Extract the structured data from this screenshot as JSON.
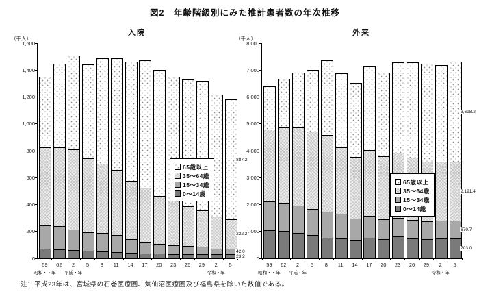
{
  "figure": {
    "title": "図2　年齢階級別にみた推計患者数の年次推移",
    "note": "注：平成23年は、宮城県の石巻医療圏、気仙沼医療圏及び福島県を除いた数値である。"
  },
  "legend": {
    "items": [
      {
        "label": "65歳以上",
        "pattern": "dots"
      },
      {
        "label": "35～64歳",
        "pattern": "hatch"
      },
      {
        "label": "15～34歳",
        "pattern": "mid"
      },
      {
        "label": "0～14歳",
        "pattern": "dark"
      }
    ]
  },
  "chart_data": [
    {
      "type": "bar",
      "stacked": true,
      "title": "入院",
      "unit_label": "（千人）",
      "ylim": [
        0,
        1600
      ],
      "yticks": [
        {
          "v": 0,
          "label": "0"
        },
        {
          "v": 200,
          "label": "200"
        },
        {
          "v": 400,
          "label": "400"
        },
        {
          "v": 600,
          "label": "600"
        },
        {
          "v": 800,
          "label": "800"
        },
        {
          "v": 1000,
          "label": "1,000"
        },
        {
          "v": 1200,
          "label": "1,200"
        },
        {
          "v": 1400,
          "label": "1,400"
        },
        {
          "v": 1600,
          "label": "1,600"
        }
      ],
      "categories": [
        "59",
        "62",
        "2",
        "5",
        "8",
        "11",
        "14",
        "17",
        "20",
        "23",
        "26",
        "29",
        "2",
        "5"
      ],
      "era_labels": [
        {
          "index": 0,
          "label": "昭和・・年"
        },
        {
          "index": 2,
          "label": "平成・年"
        },
        {
          "index": 12,
          "label": "令和・年"
        }
      ],
      "series": [
        {
          "name": "0～14歳",
          "pattern": "dark",
          "last_value_label": "23.2",
          "values": [
            67,
            60,
            55,
            50,
            48,
            43,
            37,
            33,
            30,
            28,
            27,
            26,
            24,
            23.2
          ]
        },
        {
          "name": "15～34歳",
          "pattern": "mid",
          "last_value_label": "42.0",
          "values": [
            175,
            172,
            153,
            140,
            137,
            125,
            103,
            85,
            73,
            65,
            58,
            54,
            42,
            42.0
          ]
        },
        {
          "name": "35～64歳",
          "pattern": "hatch",
          "last_value_label": "222.2",
          "values": [
            578,
            588,
            597,
            550,
            515,
            482,
            430,
            402,
            355,
            332,
            297,
            270,
            241,
            222.2
          ]
        },
        {
          "name": "65歳以上",
          "pattern": "dots",
          "last_value_label": "887.2",
          "values": [
            520,
            615,
            695,
            690,
            780,
            830,
            880,
            940,
            932,
            915,
            938,
            960,
            903,
            887.2
          ]
        }
      ]
    },
    {
      "type": "bar",
      "stacked": true,
      "title": "外来",
      "unit_label": "（千人）",
      "ylim": [
        0,
        8000
      ],
      "yticks": [
        {
          "v": 0,
          "label": "0"
        },
        {
          "v": 1000,
          "label": "1,000"
        },
        {
          "v": 2000,
          "label": "2,000"
        },
        {
          "v": 3000,
          "label": "3,000"
        },
        {
          "v": 4000,
          "label": "4,000"
        },
        {
          "v": 5000,
          "label": "5,000"
        },
        {
          "v": 6000,
          "label": "6,000"
        },
        {
          "v": 7000,
          "label": "7,000"
        },
        {
          "v": 8000,
          "label": "8,000"
        }
      ],
      "categories": [
        "59",
        "62",
        "2",
        "5",
        "8",
        "11",
        "14",
        "17",
        "20",
        "23",
        "26",
        "29",
        "2",
        "5"
      ],
      "era_labels": [
        {
          "index": 0,
          "label": "昭和・・年"
        },
        {
          "index": 2,
          "label": "平成・年"
        },
        {
          "index": 12,
          "label": "令和・年"
        }
      ],
      "series": [
        {
          "name": "0～14歳",
          "pattern": "dark",
          "last_value_label": "703.0",
          "values": [
            1030,
            1000,
            920,
            830,
            750,
            720,
            640,
            750,
            690,
            780,
            720,
            700,
            720,
            703.0
          ]
        },
        {
          "name": "15～34歳",
          "pattern": "mid",
          "last_value_label": "670.7",
          "values": [
            1070,
            1040,
            1020,
            990,
            970,
            910,
            810,
            810,
            740,
            710,
            690,
            660,
            650,
            670.7
          ]
        },
        {
          "name": "35～64歳",
          "pattern": "hatch",
          "last_value_label": "2,191.4",
          "values": [
            2660,
            2800,
            2900,
            2880,
            2840,
            2470,
            2290,
            2440,
            2330,
            2400,
            2310,
            2220,
            2210,
            2191.4
          ]
        },
        {
          "name": "65歳以上",
          "pattern": "dots",
          "last_value_label": "3,698.2",
          "values": [
            1590,
            1790,
            2020,
            2260,
            2750,
            2720,
            2730,
            3090,
            3090,
            3340,
            3510,
            3610,
            3560,
            3698.2
          ]
        }
      ]
    }
  ]
}
